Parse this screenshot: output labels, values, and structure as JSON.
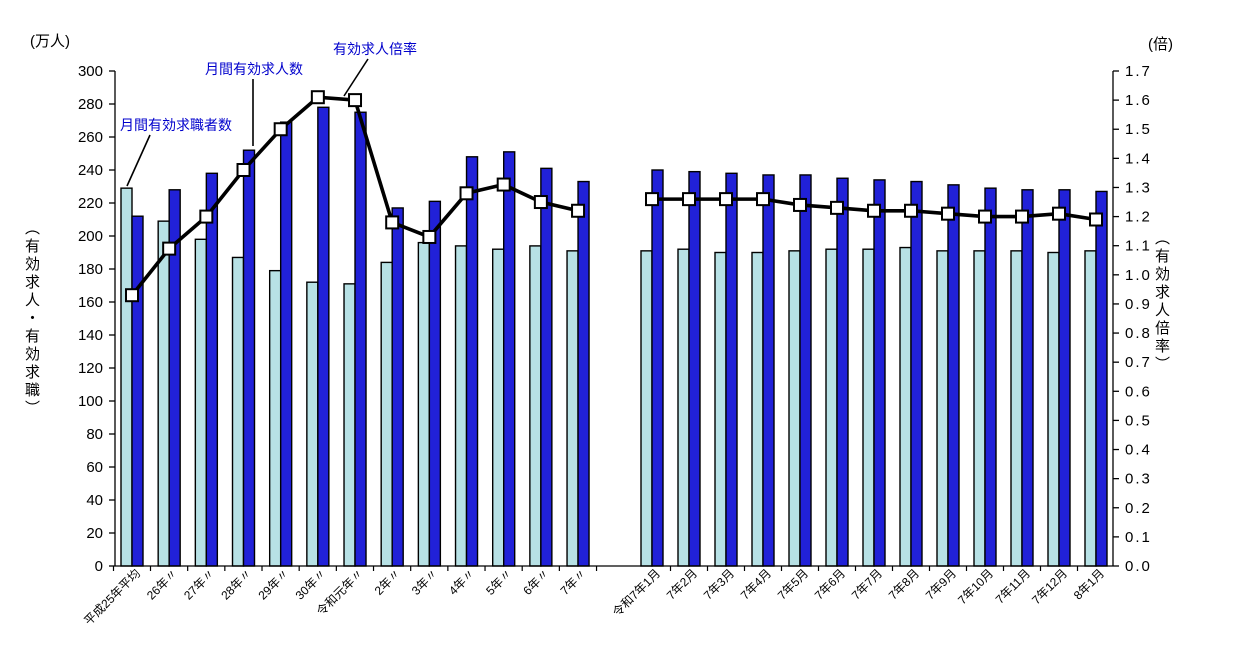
{
  "chart_data": {
    "type": "bar",
    "subtype": "grouped bars with overlaid line (dual axis combo)",
    "title": "",
    "categories": [
      "平成25年平均",
      "26年〃",
      "27年〃",
      "28年〃",
      "29年〃",
      "30年〃",
      "令和元年〃",
      "2年〃",
      "3年〃",
      "4年〃",
      "5年〃",
      "6年〃",
      "7年〃",
      "令和7年1月",
      "7年2月",
      "7年3月",
      "7年4月",
      "7年5月",
      "7年6月",
      "7年7月",
      "7年8月",
      "7年9月",
      "7年10月",
      "7年11月",
      "7年12月",
      "8年1月"
    ],
    "section_gap_after_index": 12,
    "series": [
      {
        "name": "月間有効求職者数",
        "chart": "bar",
        "axis": "left",
        "color": "#b7e1e5",
        "values": [
          229,
          209,
          198,
          187,
          179,
          172,
          171,
          184,
          196,
          194,
          192,
          194,
          191,
          191,
          192,
          190,
          190,
          191,
          192,
          192,
          193,
          191,
          191,
          191,
          190,
          191
        ]
      },
      {
        "name": "月間有効求人数",
        "chart": "bar",
        "axis": "left",
        "color": "#2121d8",
        "values": [
          212,
          228,
          238,
          252,
          269,
          278,
          275,
          217,
          221,
          248,
          251,
          241,
          233,
          240,
          239,
          238,
          237,
          237,
          235,
          234,
          233,
          231,
          229,
          228,
          228,
          227
        ]
      },
      {
        "name": "有効求人倍率",
        "chart": "line",
        "axis": "right",
        "color": "#000000",
        "marker": "white-square",
        "values": [
          0.93,
          1.09,
          1.2,
          1.36,
          1.5,
          1.61,
          1.6,
          1.18,
          1.13,
          1.28,
          1.31,
          1.25,
          1.22,
          1.26,
          1.26,
          1.26,
          1.26,
          1.24,
          1.23,
          1.22,
          1.22,
          1.21,
          1.2,
          1.2,
          1.21,
          1.19
        ]
      }
    ],
    "left_axis": {
      "unit": "(万人)",
      "title": "（有効求人・有効求職）",
      "min": 0,
      "max": 300,
      "step": 20
    },
    "right_axis": {
      "unit": "(倍)",
      "title": "（有効求人倍率）",
      "min": 0,
      "max": 1.7,
      "step": 0.1
    },
    "grid": false,
    "legend": "in-plot annotations with leader lines",
    "x_tick_rotation": 45
  },
  "annotations": {
    "seekers_label": "月間有効求職者数",
    "openings_label": "月間有効求人数",
    "ratio_label": "有効求人倍率",
    "text_color": "#0000cc"
  }
}
